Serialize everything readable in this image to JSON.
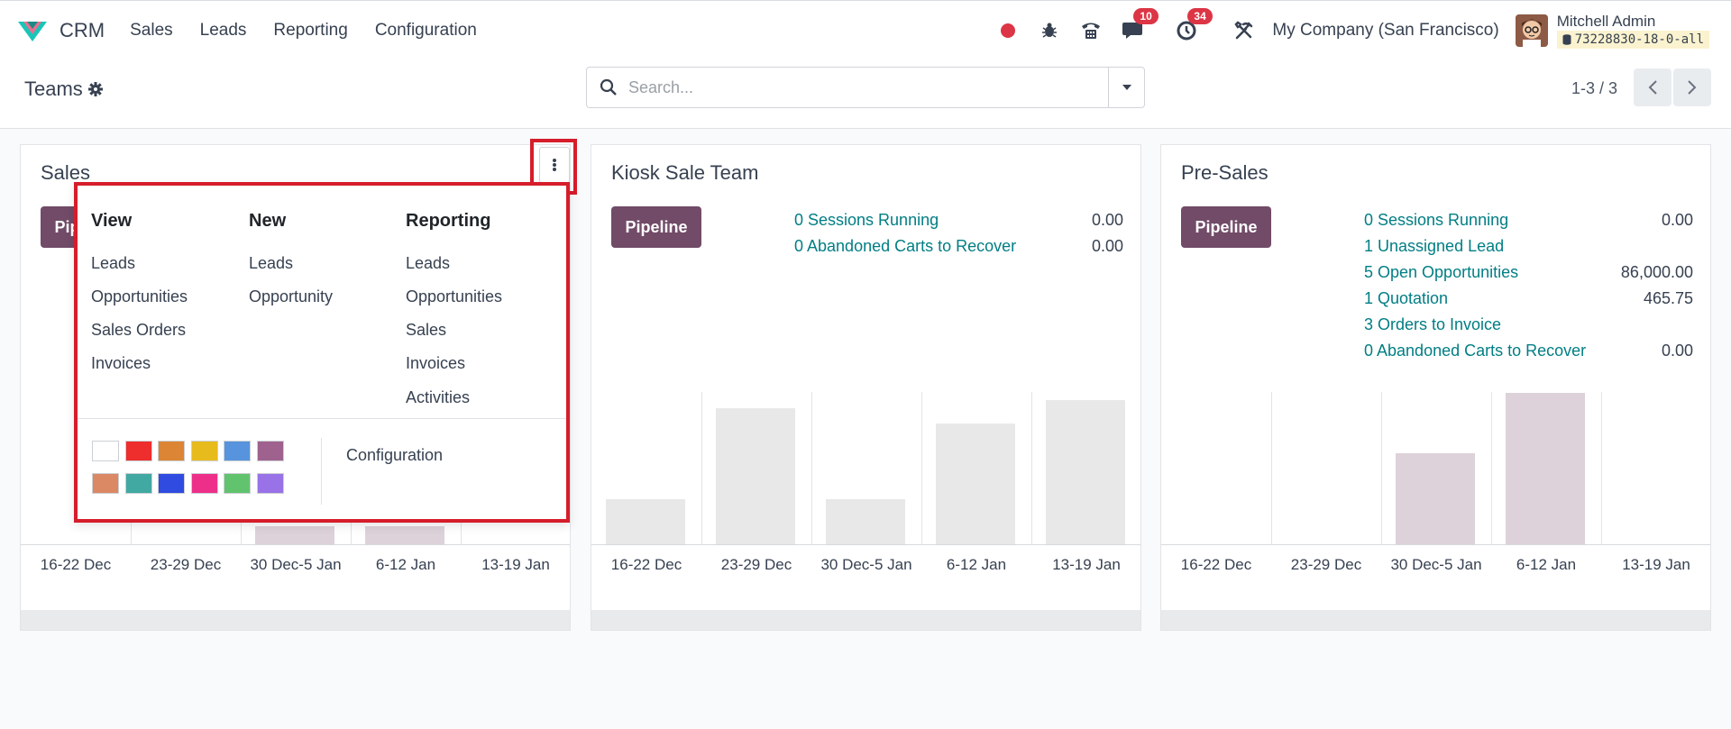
{
  "navbar": {
    "app_name": "CRM",
    "menu": [
      "Sales",
      "Leads",
      "Reporting",
      "Configuration"
    ],
    "chat_count": "10",
    "activity_count": "34",
    "company": "My Company (San Francisco)",
    "user_name": "Mitchell Admin",
    "db_name": "73228830-18-0-all"
  },
  "control": {
    "title": "Teams",
    "search_placeholder": "Search...",
    "pager": "1-3 / 3"
  },
  "cards": [
    {
      "title": "Sales",
      "pipeline_label": "Pipeline",
      "chart_ticks": [
        "16-22 Dec",
        "23-29 Dec",
        "30 Dec-5 Jan",
        "6-12 Jan",
        "13-19 Jan"
      ]
    },
    {
      "title": "Kiosk Sale Team",
      "pipeline_label": "Pipeline",
      "stats": [
        {
          "label": "0 Sessions Running",
          "value": "0.00"
        },
        {
          "label": "0  Abandoned Carts to Recover",
          "value": "0.00"
        }
      ],
      "chart_ticks": [
        "16-22 Dec",
        "23-29 Dec",
        "30 Dec-5 Jan",
        "6-12 Jan",
        "13-19 Jan"
      ]
    },
    {
      "title": "Pre-Sales",
      "pipeline_label": "Pipeline",
      "stats": [
        {
          "label": "0 Sessions Running",
          "value": "0.00"
        },
        {
          "label": "1 Unassigned Lead",
          "value": ""
        },
        {
          "label": "5 Open Opportunities",
          "value": "86,000.00"
        },
        {
          "label": "1 Quotation",
          "value": "465.75"
        },
        {
          "label": "3 Orders to Invoice",
          "value": ""
        },
        {
          "label": "0  Abandoned Carts to Recover",
          "value": "0.00"
        }
      ],
      "chart_ticks": [
        "16-22 Dec",
        "23-29 Dec",
        "30 Dec-5 Jan",
        "6-12 Jan",
        "13-19 Jan"
      ]
    }
  ],
  "dropdown": {
    "view": {
      "heading": "View",
      "items": [
        "Leads",
        "Opportunities",
        "Sales Orders",
        "Invoices"
      ]
    },
    "new": {
      "heading": "New",
      "items": [
        "Leads",
        "Opportunity"
      ]
    },
    "reporting": {
      "heading": "Reporting",
      "items": [
        "Leads",
        "Opportunities",
        "Sales",
        "Invoices",
        "Activities"
      ]
    },
    "configuration": "Configuration",
    "colors": [
      "#ffffff",
      "#ee2d2d",
      "#dc8534",
      "#e8bb1d",
      "#5794dd",
      "#9f628f",
      "#db8865",
      "#41a9a2",
      "#304be0",
      "#ee2f8a",
      "#61c36e",
      "#9872e6"
    ]
  },
  "chart_data": [
    {
      "type": "bar",
      "name_ref": "Kiosk Sale Team",
      "categories": [
        "16-22 Dec",
        "23-29 Dec",
        "30 Dec-5 Jan",
        "6-12 Jan",
        "13-19 Jan"
      ],
      "values": [
        0.3,
        0.9,
        0.3,
        0.8,
        0.95
      ],
      "ylim": [
        0,
        1
      ]
    },
    {
      "type": "bar",
      "name_ref": "Pre-Sales",
      "categories": [
        "16-22 Dec",
        "23-29 Dec",
        "30 Dec-5 Jan",
        "6-12 Jan",
        "13-19 Jan"
      ],
      "values": [
        0,
        0,
        0.6,
        1.0,
        0
      ],
      "ylim": [
        0,
        1
      ]
    }
  ]
}
